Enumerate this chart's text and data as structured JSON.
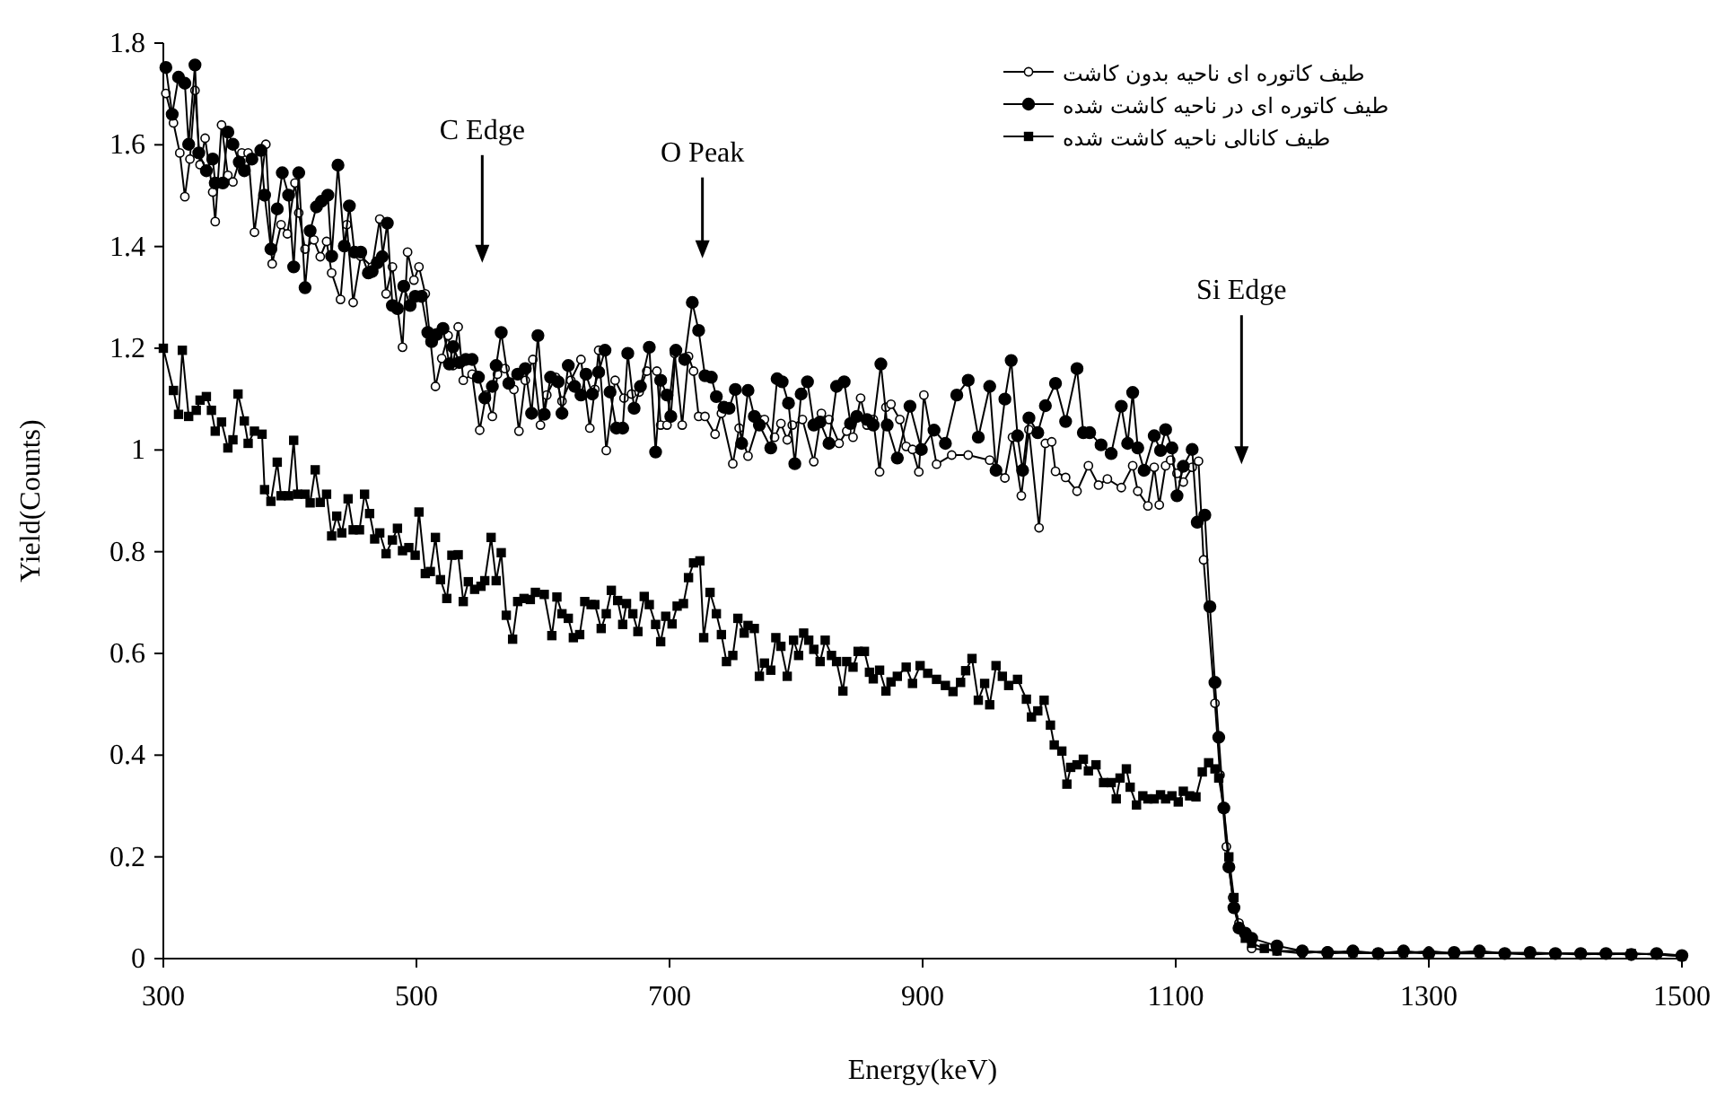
{
  "chart_data": {
    "type": "line",
    "xlabel": "Energy(keV)",
    "ylabel": "Yield(Counts)",
    "xlim": [
      300,
      1500
    ],
    "xticks": [
      300,
      500,
      700,
      900,
      1100,
      1300,
      1500
    ],
    "ylim": [
      0,
      1.8
    ],
    "yticks": [
      0,
      0.2,
      0.4,
      0.6,
      0.8,
      1,
      1.2,
      1.4,
      1.6,
      1.8
    ],
    "grid": false,
    "legend": "top right",
    "annotations": [
      "C Edge",
      "O Peak",
      "Si Edge"
    ],
    "series": [
      {
        "name": "طیف کاتوره ای ناحیه بدون کاشت",
        "color": "#ffffff",
        "marker": "circle",
        "x": [
          302,
          308,
          313,
          317,
          321,
          325,
          329,
          333,
          339,
          341,
          346,
          351,
          355,
          362,
          367,
          372,
          381,
          386,
          393,
          398,
          404,
          407,
          412,
          419,
          424,
          429,
          433,
          440,
          445,
          450,
          456,
          465,
          471,
          476,
          481,
          489,
          493,
          498,
          502,
          507,
          515,
          520,
          525,
          529,
          533,
          537,
          544,
          550,
          555,
          560,
          564,
          570,
          577,
          581,
          586,
          592,
          598,
          603,
          610,
          615,
          622,
          630,
          637,
          641,
          644,
          650,
          657,
          664,
          670,
          676,
          682,
          690,
          693,
          698,
          704,
          710,
          715,
          719,
          723,
          728,
          736,
          741,
          750,
          755,
          762,
          771,
          775,
          783,
          788,
          793,
          797,
          805,
          814,
          820,
          826,
          834,
          840,
          845,
          851,
          856,
          861,
          866,
          871,
          875,
          882,
          887,
          892,
          897,
          901,
          911,
          923,
          936,
          953,
          965,
          971,
          978,
          984,
          992,
          997,
          1002,
          1005,
          1013,
          1022,
          1031,
          1039,
          1046,
          1057,
          1066,
          1070,
          1078,
          1083,
          1087,
          1092,
          1096,
          1101,
          1106,
          1113,
          1118,
          1122,
          1131,
          1135,
          1140,
          1145,
          1150,
          1155,
          1160,
          1180,
          1200,
          1220,
          1240,
          1260,
          1280,
          1300,
          1320,
          1340,
          1360,
          1380,
          1400,
          1420,
          1440,
          1460,
          1480,
          1500
        ],
        "values": [
          1.701,
          1.643,
          1.584,
          1.498,
          1.572,
          1.707,
          1.561,
          1.613,
          1.507,
          1.449,
          1.639,
          1.54,
          1.527,
          1.584,
          1.584,
          1.428,
          1.601,
          1.366,
          1.443,
          1.425,
          1.525,
          1.466,
          1.395,
          1.413,
          1.38,
          1.41,
          1.348,
          1.296,
          1.443,
          1.29,
          1.381,
          1.36,
          1.454,
          1.307,
          1.36,
          1.202,
          1.389,
          1.334,
          1.36,
          1.307,
          1.125,
          1.18,
          1.225,
          1.166,
          1.242,
          1.137,
          1.149,
          1.039,
          1.108,
          1.066,
          1.149,
          1.16,
          1.119,
          1.037,
          1.137,
          1.178,
          1.049,
          1.108,
          1.143,
          1.096,
          1.137,
          1.178,
          1.043,
          1.119,
          1.196,
          0.999,
          1.137,
          1.102,
          1.11,
          1.114,
          1.155,
          1.155,
          1.049,
          1.049,
          1.19,
          1.049,
          1.184,
          1.155,
          1.066,
          1.066,
          1.031,
          1.072,
          0.973,
          1.043,
          0.988,
          1.06,
          1.06,
          1.025,
          1.052,
          1.02,
          1.049,
          1.06,
          0.977,
          1.072,
          1.06,
          1.013,
          1.037,
          1.025,
          1.102,
          1.049,
          1.06,
          0.957,
          1.084,
          1.09,
          1.06,
          1.007,
          1.001,
          0.957,
          1.108,
          0.972,
          0.99,
          0.99,
          0.98,
          0.945,
          1.025,
          0.91,
          1.04,
          0.847,
          1.013,
          1.016,
          0.958,
          0.946,
          0.919,
          0.969,
          0.931,
          0.943,
          0.926,
          0.969,
          0.919,
          0.89,
          0.966,
          0.892,
          0.969,
          0.98,
          0.954,
          0.937,
          0.966,
          0.978,
          0.784,
          0.502,
          0.361,
          0.22,
          0.12,
          0.07,
          0.05,
          0.02,
          0.015,
          0.01,
          0.015,
          0.01,
          0.012,
          0.01,
          0.015,
          0.01,
          0.01,
          0.012,
          0.01,
          0.01,
          0.008,
          0.01,
          0.01,
          0.008,
          0.005
        ]
      },
      {
        "name": "طیف کاتوره ای در ناحیه کاشت شده",
        "color": "#000000",
        "marker": "circle",
        "x": [
          302,
          307,
          312,
          317,
          320,
          325,
          328,
          334,
          339,
          341,
          347,
          351,
          355,
          360,
          364,
          370,
          377,
          380,
          385,
          390,
          394,
          399,
          403,
          407,
          412,
          416,
          421,
          425,
          430,
          433,
          438,
          443,
          447,
          451,
          456,
          462,
          465,
          469,
          473,
          477,
          481,
          485,
          490,
          495,
          499,
          504,
          509,
          512,
          516,
          521,
          526,
          529,
          534,
          539,
          544,
          549,
          554,
          560,
          563,
          567,
          573,
          580,
          586,
          591,
          596,
          601,
          606,
          612,
          615,
          620,
          625,
          630,
          634,
          639,
          644,
          649,
          653,
          658,
          663,
          667,
          672,
          677,
          684,
          689,
          693,
          698,
          701,
          705,
          712,
          718,
          723,
          728,
          733,
          737,
          743,
          747,
          752,
          757,
          762,
          767,
          771,
          780,
          785,
          789,
          794,
          799,
          804,
          809,
          814,
          819,
          826,
          832,
          838,
          843,
          848,
          856,
          861,
          867,
          872,
          880,
          890,
          899,
          909,
          918,
          927,
          936,
          944,
          953,
          958,
          965,
          970,
          975,
          979,
          984,
          991,
          997,
          1005,
          1013,
          1022,
          1027,
          1032,
          1041,
          1049,
          1057,
          1062,
          1066,
          1070,
          1075,
          1083,
          1088,
          1092,
          1097,
          1101,
          1106,
          1113,
          1117,
          1123,
          1127,
          1131,
          1134,
          1138,
          1142,
          1146,
          1150,
          1155,
          1160,
          1180,
          1200,
          1220,
          1240,
          1260,
          1280,
          1300,
          1320,
          1340,
          1360,
          1380,
          1400,
          1420,
          1440,
          1460,
          1480,
          1500
        ],
        "values": [
          1.752,
          1.66,
          1.733,
          1.721,
          1.601,
          1.757,
          1.584,
          1.549,
          1.572,
          1.525,
          1.525,
          1.625,
          1.601,
          1.566,
          1.549,
          1.572,
          1.589,
          1.501,
          1.395,
          1.474,
          1.545,
          1.501,
          1.36,
          1.545,
          1.319,
          1.431,
          1.478,
          1.489,
          1.501,
          1.381,
          1.56,
          1.401,
          1.48,
          1.389,
          1.389,
          1.348,
          1.351,
          1.368,
          1.38,
          1.446,
          1.284,
          1.278,
          1.322,
          1.284,
          1.302,
          1.302,
          1.231,
          1.213,
          1.227,
          1.239,
          1.169,
          1.203,
          1.172,
          1.178,
          1.178,
          1.143,
          1.102,
          1.125,
          1.166,
          1.231,
          1.131,
          1.149,
          1.16,
          1.072,
          1.225,
          1.07,
          1.143,
          1.134,
          1.072,
          1.166,
          1.125,
          1.108,
          1.149,
          1.11,
          1.153,
          1.196,
          1.114,
          1.043,
          1.043,
          1.19,
          1.082,
          1.125,
          1.202,
          0.996,
          1.137,
          1.108,
          1.066,
          1.196,
          1.178,
          1.29,
          1.235,
          1.146,
          1.143,
          1.105,
          1.084,
          1.082,
          1.119,
          1.013,
          1.117,
          1.066,
          1.049,
          1.004,
          1.14,
          1.134,
          1.092,
          0.973,
          1.11,
          1.134,
          1.049,
          1.055,
          1.013,
          1.125,
          1.134,
          1.052,
          1.066,
          1.06,
          1.049,
          1.169,
          1.049,
          0.984,
          1.086,
          1.001,
          1.039,
          1.013,
          1.108,
          1.137,
          1.025,
          1.125,
          0.96,
          1.1,
          1.176,
          1.028,
          0.96,
          1.063,
          1.034,
          1.087,
          1.131,
          1.056,
          1.16,
          1.034,
          1.034,
          1.01,
          0.993,
          1.086,
          1.013,
          1.113,
          1.004,
          0.96,
          1.028,
          0.999,
          1.04,
          1.004,
          0.91,
          0.968,
          1.001,
          0.858,
          0.872,
          0.692,
          0.543,
          0.435,
          0.296,
          0.18,
          0.1,
          0.06,
          0.05,
          0.04,
          0.025,
          0.015,
          0.012,
          0.015,
          0.01,
          0.015,
          0.01,
          0.012,
          0.015,
          0.01,
          0.012,
          0.01,
          0.01,
          0.01,
          0.008,
          0.01,
          0.006
        ]
      },
      {
        "name": "طیف کانالی ناحیه کاشت شده",
        "color": "#000000",
        "marker": "square",
        "x": [
          300,
          308,
          312,
          315,
          320,
          326,
          329,
          334,
          338,
          341,
          346,
          351,
          355,
          359,
          364,
          367,
          372,
          378,
          380,
          385,
          390,
          393,
          399,
          403,
          406,
          412,
          416,
          420,
          424,
          429,
          433,
          437,
          441,
          446,
          450,
          455,
          459,
          463,
          467,
          471,
          476,
          481,
          485,
          489,
          494,
          499,
          502,
          507,
          511,
          515,
          519,
          524,
          528,
          533,
          537,
          541,
          546,
          551,
          554,
          559,
          563,
          567,
          571,
          576,
          580,
          585,
          590,
          594,
          601,
          607,
          611,
          615,
          620,
          624,
          629,
          633,
          638,
          641,
          646,
          650,
          654,
          659,
          663,
          666,
          671,
          675,
          680,
          684,
          689,
          693,
          697,
          702,
          706,
          711,
          715,
          719,
          724,
          727,
          732,
          737,
          741,
          745,
          750,
          754,
          759,
          762,
          767,
          771,
          775,
          780,
          784,
          788,
          793,
          798,
          802,
          806,
          810,
          814,
          819,
          823,
          828,
          832,
          837,
          840,
          845,
          849,
          854,
          858,
          861,
          866,
          871,
          875,
          880,
          887,
          892,
          898,
          904,
          911,
          918,
          924,
          930,
          934,
          939,
          944,
          949,
          953,
          958,
          963,
          968,
          975,
          982,
          986,
          991,
          996,
          1001,
          1004,
          1010,
          1014,
          1017,
          1022,
          1027,
          1031,
          1037,
          1043,
          1049,
          1053,
          1056,
          1061,
          1064,
          1069,
          1074,
          1078,
          1083,
          1088,
          1092,
          1097,
          1102,
          1106,
          1111,
          1116,
          1121,
          1126,
          1131,
          1134,
          1138,
          1142,
          1146,
          1150,
          1155,
          1160,
          1170,
          1180,
          1200,
          1220,
          1240,
          1260,
          1280,
          1300,
          1320,
          1340,
          1360,
          1380,
          1400,
          1420,
          1440,
          1460,
          1480,
          1500
        ],
        "values": [
          1.2,
          1.117,
          1.07,
          1.196,
          1.066,
          1.078,
          1.098,
          1.105,
          1.078,
          1.037,
          1.055,
          1.004,
          1.02,
          1.11,
          1.057,
          1.013,
          1.037,
          1.031,
          0.922,
          0.899,
          0.976,
          0.91,
          0.91,
          1.019,
          0.913,
          0.913,
          0.896,
          0.961,
          0.897,
          0.913,
          0.831,
          0.87,
          0.837,
          0.904,
          0.843,
          0.843,
          0.913,
          0.875,
          0.825,
          0.837,
          0.796,
          0.823,
          0.846,
          0.802,
          0.808,
          0.793,
          0.878,
          0.757,
          0.761,
          0.828,
          0.745,
          0.708,
          0.793,
          0.794,
          0.702,
          0.741,
          0.726,
          0.732,
          0.743,
          0.828,
          0.743,
          0.798,
          0.675,
          0.628,
          0.702,
          0.708,
          0.706,
          0.72,
          0.716,
          0.635,
          0.711,
          0.678,
          0.669,
          0.631,
          0.637,
          0.702,
          0.696,
          0.696,
          0.649,
          0.678,
          0.724,
          0.704,
          0.657,
          0.698,
          0.678,
          0.643,
          0.712,
          0.696,
          0.657,
          0.623,
          0.673,
          0.658,
          0.693,
          0.698,
          0.749,
          0.778,
          0.782,
          0.631,
          0.72,
          0.678,
          0.637,
          0.584,
          0.596,
          0.669,
          0.64,
          0.655,
          0.649,
          0.555,
          0.581,
          0.567,
          0.631,
          0.614,
          0.555,
          0.626,
          0.596,
          0.64,
          0.626,
          0.608,
          0.584,
          0.626,
          0.596,
          0.584,
          0.526,
          0.584,
          0.573,
          0.604,
          0.604,
          0.563,
          0.55,
          0.567,
          0.526,
          0.544,
          0.555,
          0.573,
          0.541,
          0.576,
          0.561,
          0.549,
          0.537,
          0.525,
          0.543,
          0.566,
          0.59,
          0.508,
          0.541,
          0.499,
          0.576,
          0.555,
          0.537,
          0.549,
          0.51,
          0.475,
          0.487,
          0.508,
          0.459,
          0.42,
          0.408,
          0.343,
          0.376,
          0.381,
          0.392,
          0.369,
          0.381,
          0.346,
          0.346,
          0.314,
          0.355,
          0.373,
          0.337,
          0.302,
          0.32,
          0.314,
          0.314,
          0.322,
          0.314,
          0.32,
          0.308,
          0.329,
          0.32,
          0.318,
          0.367,
          0.385,
          0.373,
          0.355,
          0.296,
          0.2,
          0.12,
          0.06,
          0.04,
          0.03,
          0.02,
          0.015,
          0.015,
          0.01,
          0.012,
          0.01,
          0.012,
          0.01,
          0.01,
          0.012,
          0.01,
          0.008,
          0.01,
          0.01,
          0.008,
          0.01,
          0.008,
          0.005
        ]
      }
    ]
  }
}
